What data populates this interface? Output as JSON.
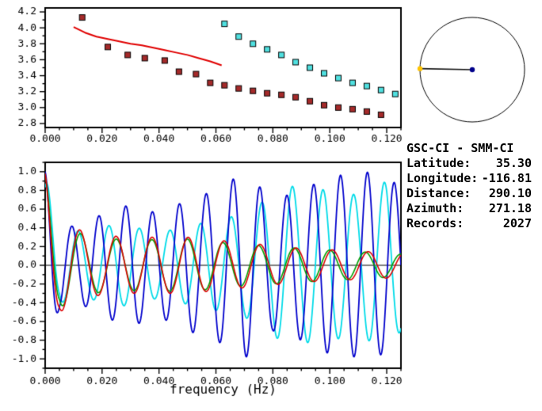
{
  "background": "#ffffff",
  "station_info": {
    "title": "GSC-CI - SMM-CI",
    "rows": [
      {
        "label": "Latitude:",
        "value": "35.30"
      },
      {
        "label": "Longitude:",
        "value": "-116.81"
      },
      {
        "label": "Distance:",
        "value": "290.10"
      },
      {
        "label": "Azimuth:",
        "value": "271.18"
      },
      {
        "label": "Records:",
        "value": "2027"
      }
    ]
  },
  "azimuth_dial": {
    "azimuth_deg": 271.18,
    "circle_color": "#000000",
    "needle_color": "#111111",
    "center_dot_color": "#00008b",
    "tip_dot_color": "#ffc400"
  },
  "chart_data": [
    {
      "type": "scatter",
      "name": "dispersion-panel",
      "title": "",
      "xlabel": "",
      "ylabel": "",
      "xlim": [
        0,
        0.125
      ],
      "ylim": [
        2.75,
        4.25
      ],
      "x_major_ticks": [
        0,
        0.02,
        0.04,
        0.06,
        0.08,
        0.1,
        0.12
      ],
      "x_tick_labels": [
        "0.000",
        "0.020",
        "0.040",
        "0.060",
        "0.080",
        "0.100",
        "0.120"
      ],
      "x_minor_step": 0.005,
      "y_major_ticks": [
        2.8,
        3.0,
        3.2,
        3.4,
        3.6,
        3.8,
        4.0,
        4.2
      ],
      "y_tick_labels": [
        "2.8",
        "3.0",
        "3.2",
        "3.4",
        "3.6",
        "3.8",
        "4.0",
        "4.2"
      ],
      "y_minor_step": 0.1,
      "grid": false,
      "series": [
        {
          "name": "velocity-points-dark-red",
          "type": "squares",
          "color": "#a52a2a",
          "edge": "#000000",
          "points": [
            [
              0.013,
              4.13
            ],
            [
              0.022,
              3.76
            ],
            [
              0.029,
              3.66
            ],
            [
              0.035,
              3.62
            ],
            [
              0.042,
              3.59
            ],
            [
              0.047,
              3.45
            ],
            [
              0.053,
              3.42
            ],
            [
              0.058,
              3.31
            ],
            [
              0.063,
              3.28
            ],
            [
              0.068,
              3.24
            ],
            [
              0.073,
              3.21
            ],
            [
              0.078,
              3.18
            ],
            [
              0.083,
              3.16
            ],
            [
              0.088,
              3.13
            ],
            [
              0.093,
              3.08
            ],
            [
              0.098,
              3.03
            ],
            [
              0.103,
              3.0
            ],
            [
              0.108,
              2.98
            ],
            [
              0.113,
              2.95
            ],
            [
              0.118,
              2.91
            ]
          ]
        },
        {
          "name": "velocity-points-cyan",
          "type": "squares",
          "color": "#50e0e0",
          "edge": "#000000",
          "points": [
            [
              0.063,
              4.05
            ],
            [
              0.068,
              3.89
            ],
            [
              0.073,
              3.8
            ],
            [
              0.078,
              3.73
            ],
            [
              0.083,
              3.66
            ],
            [
              0.088,
              3.57
            ],
            [
              0.093,
              3.5
            ],
            [
              0.098,
              3.43
            ],
            [
              0.103,
              3.37
            ],
            [
              0.108,
              3.31
            ],
            [
              0.113,
              3.27
            ],
            [
              0.118,
              3.22
            ],
            [
              0.123,
              3.17
            ]
          ]
        },
        {
          "name": "reference-velocity-curve",
          "type": "line",
          "color": "#e00000",
          "width": 2,
          "points": [
            [
              0.01,
              4.01
            ],
            [
              0.014,
              3.94
            ],
            [
              0.018,
              3.89
            ],
            [
              0.022,
              3.86
            ],
            [
              0.026,
              3.83
            ],
            [
              0.03,
              3.8
            ],
            [
              0.034,
              3.78
            ],
            [
              0.038,
              3.75
            ],
            [
              0.042,
              3.72
            ],
            [
              0.046,
              3.69
            ],
            [
              0.05,
              3.66
            ],
            [
              0.054,
              3.62
            ],
            [
              0.058,
              3.58
            ],
            [
              0.062,
              3.53
            ]
          ]
        }
      ]
    },
    {
      "type": "line",
      "name": "spectrum-panel",
      "title": "",
      "xlabel": "frequency (Hz)",
      "ylabel": "",
      "xlim": [
        0,
        0.125
      ],
      "ylim": [
        -1.1,
        1.1
      ],
      "x_major_ticks": [
        0,
        0.02,
        0.04,
        0.06,
        0.08,
        0.1,
        0.12
      ],
      "x_tick_labels": [
        "0.000",
        "0.020",
        "0.040",
        "0.060",
        "0.080",
        "0.100",
        "0.120"
      ],
      "x_minor_step": 0.005,
      "y_major_ticks": [
        -1.0,
        -0.8,
        -0.6,
        -0.4,
        -0.2,
        0.0,
        0.2,
        0.4,
        0.6,
        0.8,
        1.0
      ],
      "y_tick_labels": [
        "-1.0",
        "-0.8",
        "-0.6",
        "-0.4",
        "-0.2",
        "0.0",
        "0.2",
        "0.4",
        "0.6",
        "0.8",
        "1.0"
      ],
      "y_minor_step": 0.1,
      "grid": false,
      "zero_line": true,
      "series": [
        {
          "name": "waveform-cyan",
          "type": "synthline",
          "color": "#00dbe8",
          "width": 1.8,
          "synth": {
            "freq": 93,
            "phase": -0.5,
            "envelope": [
              [
                0,
                0.95
              ],
              [
                0.005,
                0.4
              ],
              [
                0.015,
                0.35
              ],
              [
                0.025,
                0.45
              ],
              [
                0.04,
                0.35
              ],
              [
                0.055,
                0.45
              ],
              [
                0.07,
                0.55
              ],
              [
                0.085,
                0.85
              ],
              [
                0.1,
                0.8
              ],
              [
                0.11,
                0.75
              ],
              [
                0.12,
                0.9
              ],
              [
                0.125,
                0.7
              ]
            ]
          }
        },
        {
          "name": "waveform-blue",
          "type": "synthline",
          "color": "#0000cc",
          "width": 1.8,
          "synth": {
            "freq": 106,
            "phase": 0,
            "envelope": [
              [
                0,
                1.0
              ],
              [
                0.005,
                0.45
              ],
              [
                0.012,
                0.4
              ],
              [
                0.02,
                0.55
              ],
              [
                0.03,
                0.65
              ],
              [
                0.04,
                0.55
              ],
              [
                0.05,
                0.7
              ],
              [
                0.06,
                0.8
              ],
              [
                0.07,
                1.0
              ],
              [
                0.08,
                0.7
              ],
              [
                0.09,
                0.8
              ],
              [
                0.1,
                0.95
              ],
              [
                0.115,
                1.0
              ],
              [
                0.125,
                0.85
              ]
            ]
          }
        },
        {
          "name": "waveform-green",
          "type": "synthline",
          "color": "#00a000",
          "width": 1.6,
          "synth": {
            "freq": 80,
            "phase": 0,
            "envelope": [
              [
                0,
                0.95
              ],
              [
                0.005,
                0.45
              ],
              [
                0.015,
                0.3
              ],
              [
                0.03,
                0.27
              ],
              [
                0.05,
                0.28
              ],
              [
                0.07,
                0.22
              ],
              [
                0.09,
                0.18
              ],
              [
                0.125,
                0.12
              ]
            ]
          }
        },
        {
          "name": "waveform-red",
          "type": "synthline",
          "color": "#dd0000",
          "width": 1.6,
          "synth": {
            "freq": 79,
            "phase": 0.2,
            "envelope": [
              [
                0,
                1.0
              ],
              [
                0.005,
                0.5
              ],
              [
                0.015,
                0.33
              ],
              [
                0.03,
                0.3
              ],
              [
                0.05,
                0.3
              ],
              [
                0.07,
                0.24
              ],
              [
                0.09,
                0.18
              ],
              [
                0.125,
                0.13
              ]
            ]
          }
        }
      ]
    }
  ]
}
